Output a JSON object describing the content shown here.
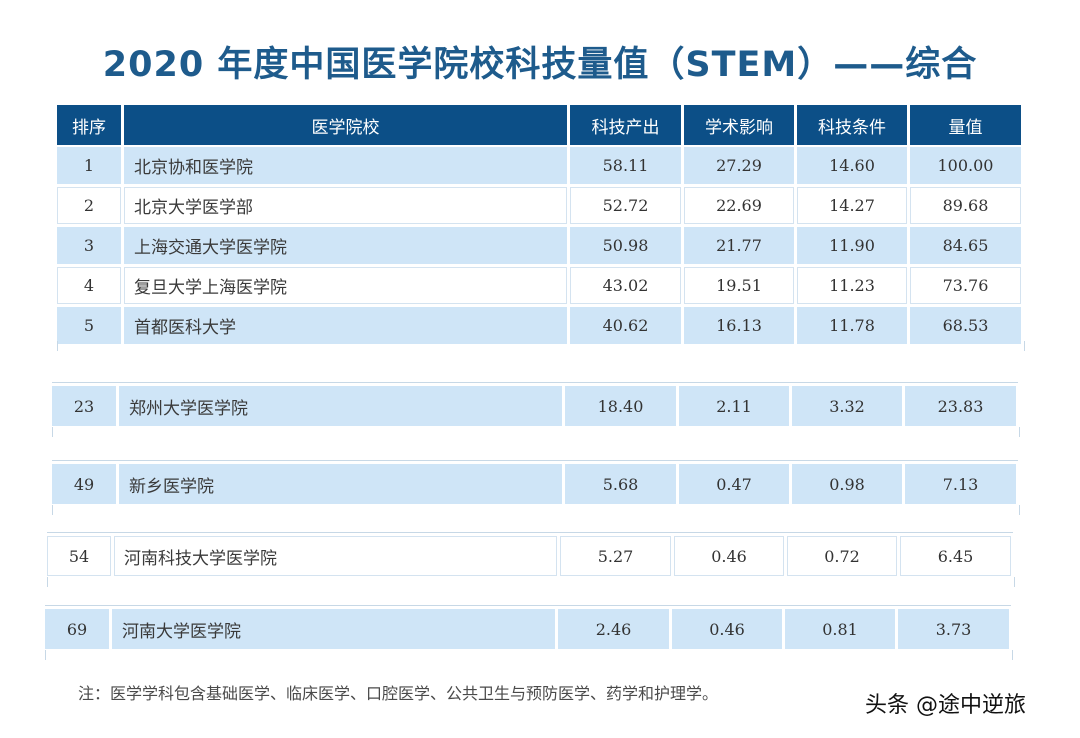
{
  "title": "2020 年度中国医学院校科技量值（STEM）——综合",
  "columns": [
    "排序",
    "医学院校",
    "科技产出",
    "学术影响",
    "科技条件",
    "量值"
  ],
  "rows_top": [
    {
      "rank": "1",
      "name": "北京协和医学院",
      "output": "58.11",
      "impact": "27.29",
      "conditions": "14.60",
      "value": "100.00"
    },
    {
      "rank": "2",
      "name": "北京大学医学部",
      "output": "52.72",
      "impact": "22.69",
      "conditions": "14.27",
      "value": "89.68"
    },
    {
      "rank": "3",
      "name": "上海交通大学医学院",
      "output": "50.98",
      "impact": "21.77",
      "conditions": "11.90",
      "value": "84.65"
    },
    {
      "rank": "4",
      "name": "复旦大学上海医学院",
      "output": "43.02",
      "impact": "19.51",
      "conditions": "11.23",
      "value": "73.76"
    },
    {
      "rank": "5",
      "name": "首都医科大学",
      "output": "40.62",
      "impact": "16.13",
      "conditions": "11.78",
      "value": "68.53"
    }
  ],
  "rows_fragments": [
    {
      "rank": "23",
      "name": "郑州大学医学院",
      "output": "18.40",
      "impact": "2.11",
      "conditions": "3.32",
      "value": "23.83"
    },
    {
      "rank": "49",
      "name": "新乡医学院",
      "output": "5.68",
      "impact": "0.47",
      "conditions": "0.98",
      "value": "7.13"
    },
    {
      "rank": "54",
      "name": "河南科技大学医学院",
      "output": "5.27",
      "impact": "0.46",
      "conditions": "0.72",
      "value": "6.45"
    },
    {
      "rank": "69",
      "name": "河南大学医学院",
      "output": "2.46",
      "impact": "0.46",
      "conditions": "0.81",
      "value": "3.73"
    }
  ],
  "note": "注：医学学科包含基础医学、临床医学、口腔医学、公共卫生与预防医学、药学和护理学。",
  "watermark": "头条 @途中逆旅",
  "colors": {
    "title": "#1e5b8c",
    "header_bg": "#0c4f87",
    "row_blue": "#cfe5f7",
    "row_white": "#ffffff"
  }
}
